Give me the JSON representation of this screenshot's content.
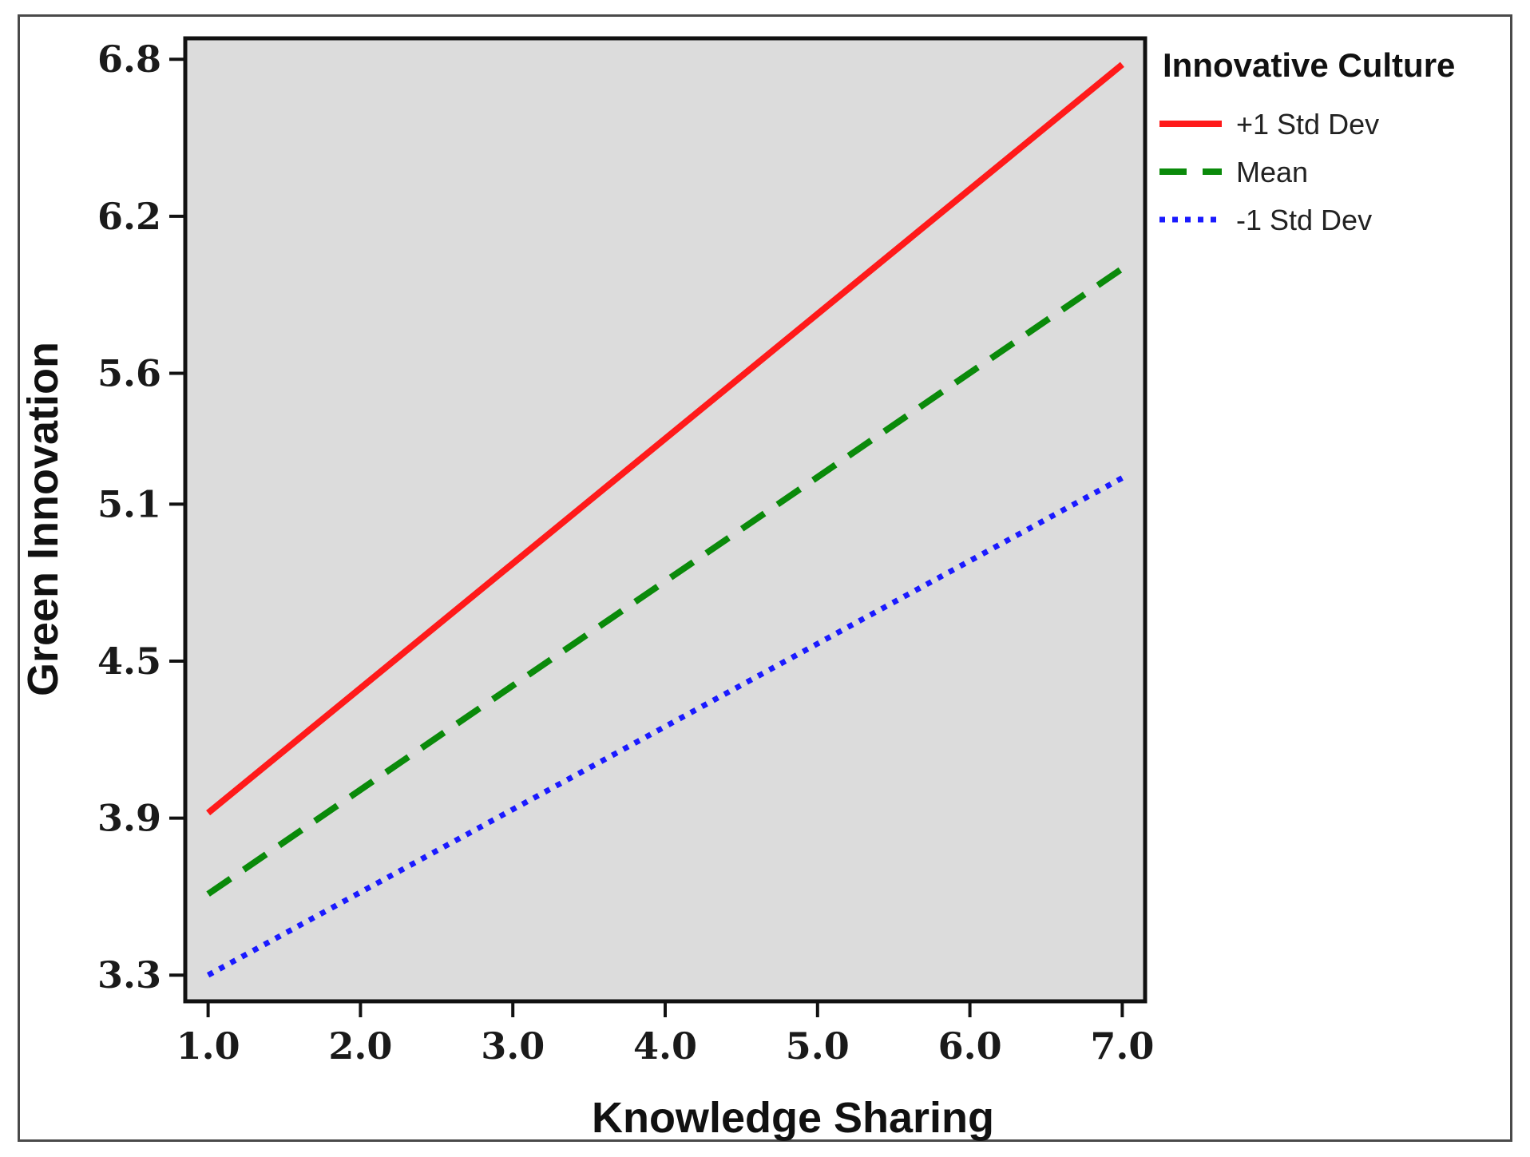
{
  "chart_data": {
    "type": "line",
    "xlabel": "Knowledge Sharing",
    "ylabel": "Green Innovation",
    "xlim": [
      0.85,
      7.15
    ],
    "ylim": [
      3.2,
      6.88
    ],
    "x_ticks": [
      1.0,
      2.0,
      3.0,
      4.0,
      5.0,
      6.0,
      7.0
    ],
    "x_tick_labels": [
      "1.0",
      "2.0",
      "3.0",
      "4.0",
      "5.0",
      "6.0",
      "7.0"
    ],
    "y_ticks": [
      3.3,
      3.9,
      4.5,
      5.1,
      5.6,
      6.2,
      6.8
    ],
    "y_tick_labels": [
      "3.3",
      "3.9",
      "4.5",
      "5.1",
      "5.6",
      "6.2",
      "6.8"
    ],
    "grid": false,
    "plot_background": "#dcdcdc",
    "legend": {
      "title": "Innovative Culture",
      "placement": "right-outside-top"
    },
    "series": [
      {
        "name": "+1 Std Dev",
        "x": [
          1.0,
          7.0
        ],
        "y": [
          3.92,
          6.78
        ],
        "color": "#ff1a1a",
        "style": "solid"
      },
      {
        "name": "Mean",
        "x": [
          1.0,
          7.0
        ],
        "y": [
          3.61,
          6.0
        ],
        "color": "#0a8a0a",
        "style": "dashed"
      },
      {
        "name": "-1 Std Dev",
        "x": [
          1.0,
          7.0
        ],
        "y": [
          3.3,
          5.2
        ],
        "color": "#1a1aff",
        "style": "dotted"
      }
    ]
  }
}
